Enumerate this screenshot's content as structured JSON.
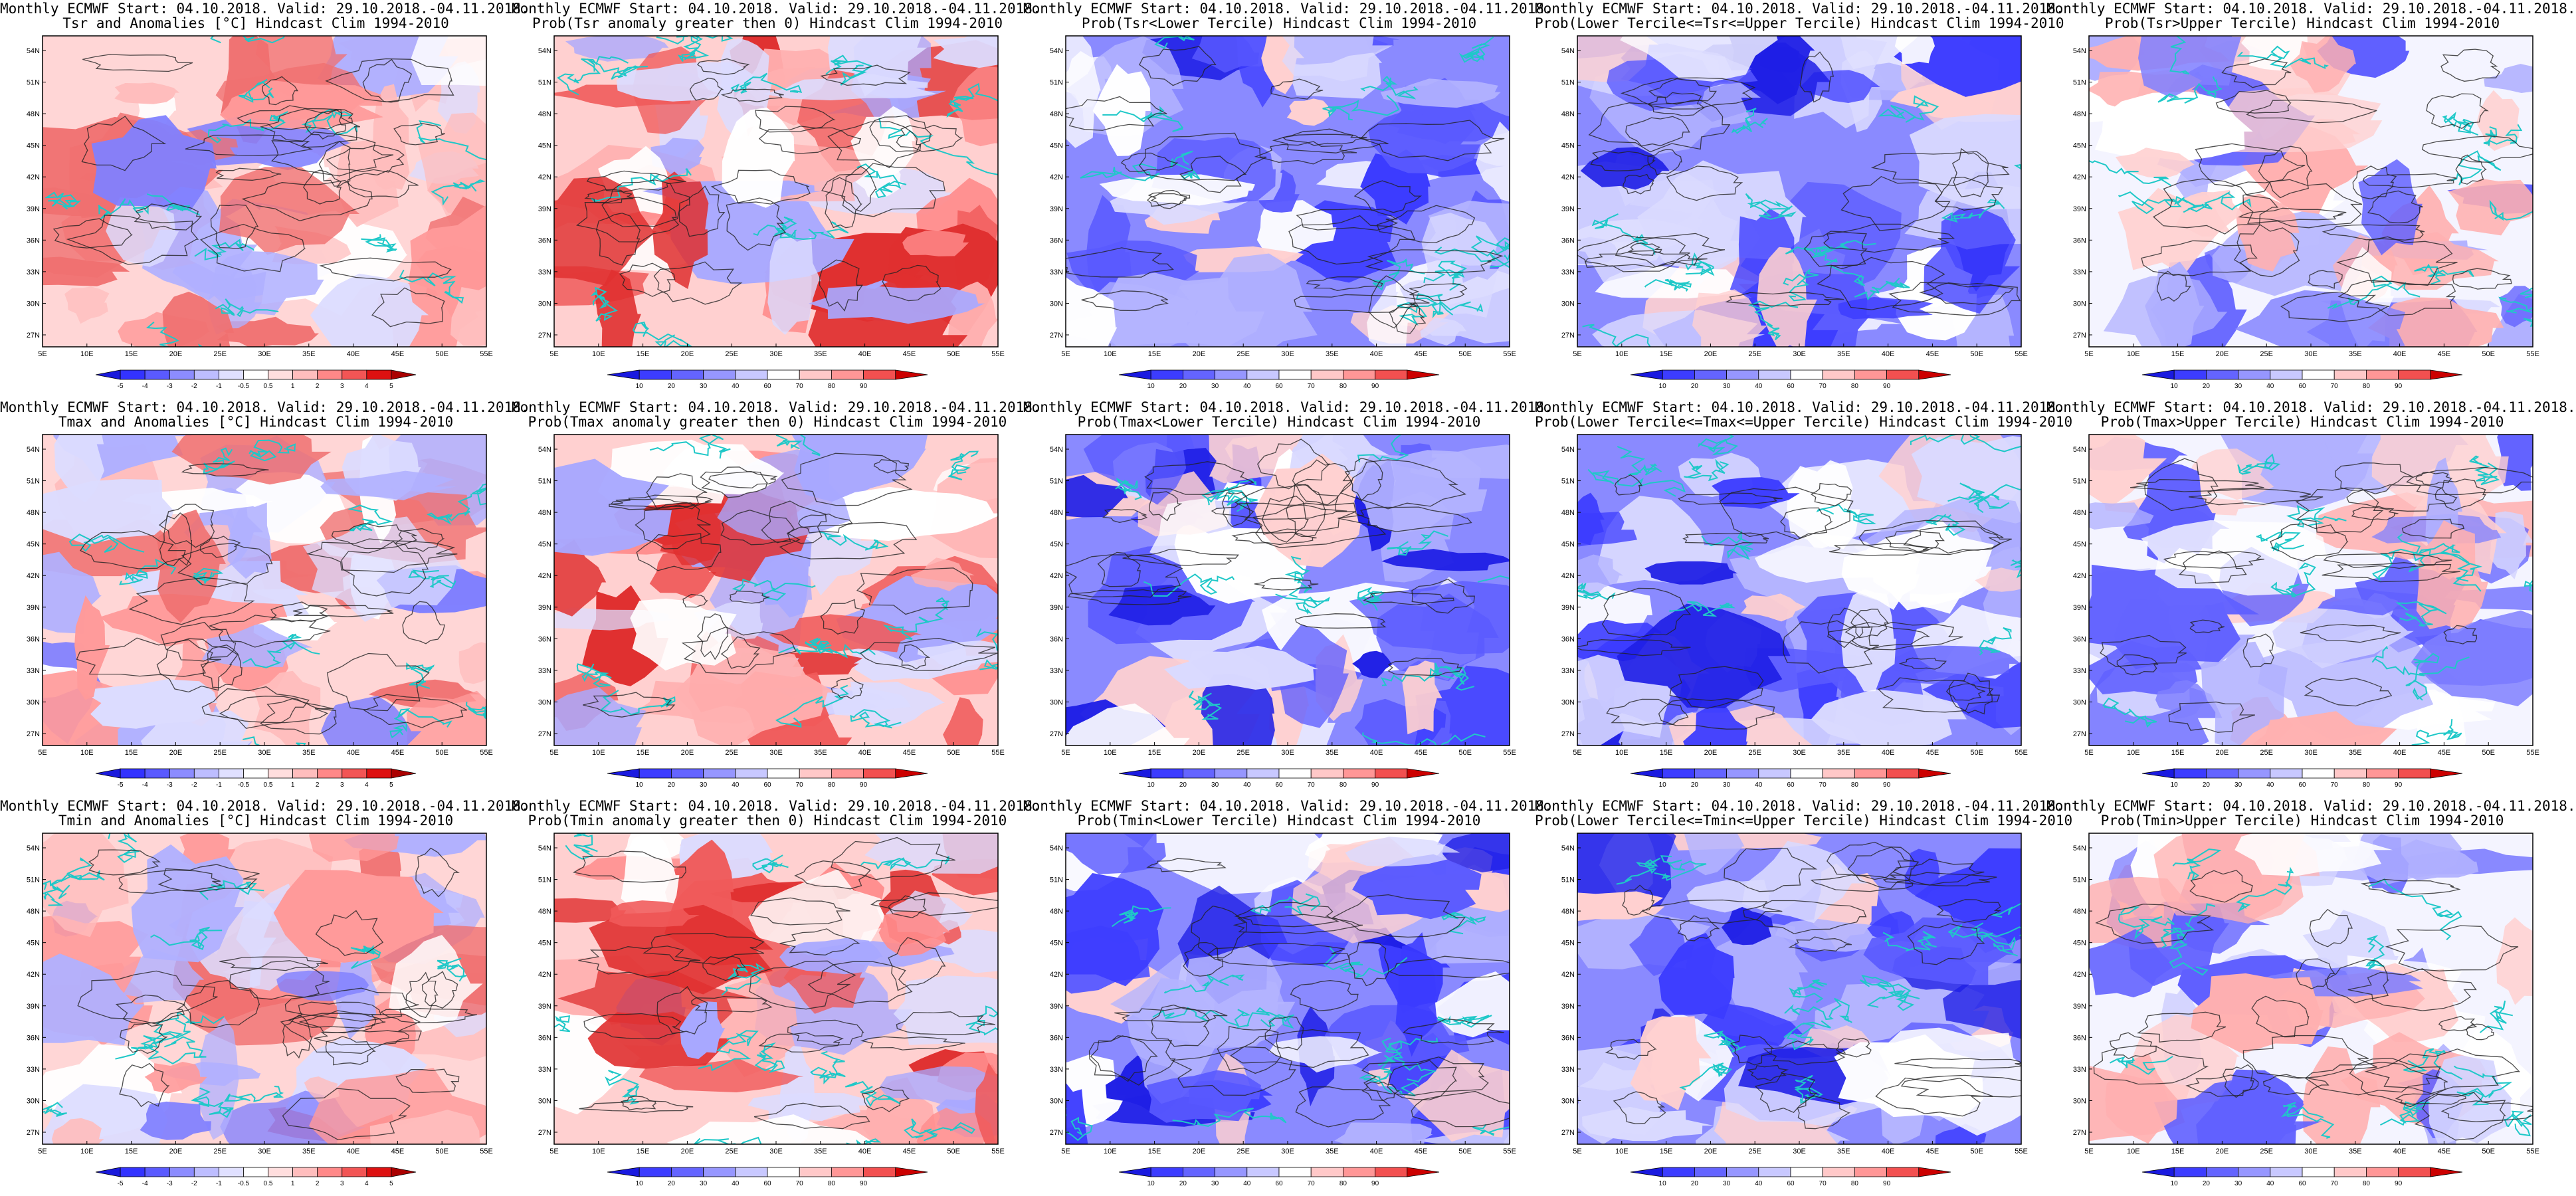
{
  "figure": {
    "panels": [
      {
        "title1": "Monthly ECMWF Start: 04.10.2018. Valid: 29.10.2018.-04.11.2018.",
        "title2": "Tsr and Anomalies [°C] Hindcast Clim 1994-2010",
        "kind": "anom",
        "legend": [
          "-5",
          "-4",
          "-3",
          "-2",
          "-1",
          "-0.5",
          "0.5",
          "1",
          "2",
          "3",
          "4",
          "5"
        ]
      },
      {
        "title1": "Monthly ECMWF Start: 04.10.2018. Valid: 29.10.2018.-04.11.2018.",
        "title2": "Prob(Tsr anomaly greater then 0) Hindcast Clim 1994-2010",
        "kind": "red",
        "legend": [
          "10",
          "20",
          "30",
          "40",
          "60",
          "70",
          "80",
          "90"
        ]
      },
      {
        "title1": "Monthly ECMWF Start: 04.10.2018. Valid: 29.10.2018.-04.11.2018.",
        "title2": "Prob(Tsr<Lower Tercile) Hindcast Clim 1994-2010",
        "kind": "blue",
        "legend": [
          "10",
          "20",
          "30",
          "40",
          "60",
          "70",
          "80",
          "90"
        ]
      },
      {
        "title1": "Monthly ECMWF Start: 04.10.2018. Valid: 29.10.2018.-04.11.2018.",
        "title2": "Prob(Lower Tercile<=Tsr<=Upper Tercile) Hindcast Clim 1994-2010",
        "kind": "blue",
        "legend": [
          "10",
          "20",
          "30",
          "40",
          "60",
          "70",
          "80",
          "90"
        ]
      },
      {
        "title1": "Monthly ECMWF Start: 04.10.2018. Valid: 29.10.2018.-04.11.2018.",
        "title2": "Prob(Tsr>Upper Tercile) Hindcast Clim 1994-2010",
        "kind": "mixed",
        "legend": [
          "10",
          "20",
          "30",
          "40",
          "60",
          "70",
          "80",
          "90"
        ]
      },
      {
        "title1": "Monthly ECMWF Start: 04.10.2018. Valid: 29.10.2018.-04.11.2018.",
        "title2": "Tmax and Anomalies [°C] Hindcast Clim 1994-2010",
        "kind": "anom",
        "legend": [
          "-5",
          "-4",
          "-3",
          "-2",
          "-1",
          "-0.5",
          "0.5",
          "1",
          "2",
          "3",
          "4",
          "5"
        ]
      },
      {
        "title1": "Monthly ECMWF Start: 04.10.2018. Valid: 29.10.2018.-04.11.2018.",
        "title2": "Prob(Tmax anomaly greater then 0) Hindcast Clim 1994-2010",
        "kind": "red",
        "legend": [
          "10",
          "20",
          "30",
          "40",
          "60",
          "70",
          "80",
          "90"
        ]
      },
      {
        "title1": "Monthly ECMWF Start: 04.10.2018. Valid: 29.10.2018.-04.11.2018.",
        "title2": "Prob(Tmax<Lower Tercile) Hindcast Clim 1994-2010",
        "kind": "blue",
        "legend": [
          "10",
          "20",
          "30",
          "40",
          "60",
          "70",
          "80",
          "90"
        ]
      },
      {
        "title1": "Monthly ECMWF Start: 04.10.2018. Valid: 29.10.2018.-04.11.2018.",
        "title2": "Prob(Lower Tercile<=Tmax<=Upper Tercile) Hindcast Clim 1994-2010",
        "kind": "blue",
        "legend": [
          "10",
          "20",
          "30",
          "40",
          "60",
          "70",
          "80",
          "90"
        ]
      },
      {
        "title1": "Monthly ECMWF Start: 04.10.2018. Valid: 29.10.2018.-04.11.2018.",
        "title2": "Prob(Tmax>Upper Tercile) Hindcast Clim 1994-2010",
        "kind": "mixed",
        "legend": [
          "10",
          "20",
          "30",
          "40",
          "60",
          "70",
          "80",
          "90"
        ]
      },
      {
        "title1": "Monthly ECMWF Start: 04.10.2018. Valid: 29.10.2018.-04.11.2018.",
        "title2": "Tmin and Anomalies [°C] Hindcast Clim 1994-2010",
        "kind": "anom",
        "legend": [
          "-5",
          "-4",
          "-3",
          "-2",
          "-1",
          "-0.5",
          "0.5",
          "1",
          "2",
          "3",
          "4",
          "5"
        ]
      },
      {
        "title1": "Monthly ECMWF Start: 04.10.2018. Valid: 29.10.2018.-04.11.2018.",
        "title2": "Prob(Tmin anomaly greater then 0) Hindcast Clim 1994-2010",
        "kind": "red",
        "legend": [
          "10",
          "20",
          "30",
          "40",
          "60",
          "70",
          "80",
          "90"
        ]
      },
      {
        "title1": "Monthly ECMWF Start: 04.10.2018. Valid: 29.10.2018.-04.11.2018.",
        "title2": "Prob(Tmin<Lower Tercile) Hindcast Clim 1994-2010",
        "kind": "blue",
        "legend": [
          "10",
          "20",
          "30",
          "40",
          "60",
          "70",
          "80",
          "90"
        ]
      },
      {
        "title1": "Monthly ECMWF Start: 04.10.2018. Valid: 29.10.2018.-04.11.2018.",
        "title2": "Prob(Lower Tercile<=Tmin<=Upper Tercile) Hindcast Clim 1994-2010",
        "kind": "blue",
        "legend": [
          "10",
          "20",
          "30",
          "40",
          "60",
          "70",
          "80",
          "90"
        ]
      },
      {
        "title1": "Monthly ECMWF Start: 04.10.2018. Valid: 29.10.2018.-04.11.2018.",
        "title2": "Prob(Tmin>Upper Tercile) Hindcast Clim 1994-2010",
        "kind": "mixed",
        "legend": [
          "10",
          "20",
          "30",
          "40",
          "60",
          "70",
          "80",
          "90"
        ]
      }
    ],
    "lat_labels": [
      "54N",
      "51N",
      "48N",
      "45N",
      "42N",
      "39N",
      "36N",
      "33N",
      "30N",
      "27N"
    ],
    "lon_labels": [
      "5E",
      "10E",
      "15E",
      "20E",
      "25E",
      "30E",
      "35E",
      "40E",
      "45E",
      "50E",
      "55E"
    ],
    "palettes": {
      "anom": [
        "#1a1adc",
        "#3333ff",
        "#5a5aff",
        "#8c8cff",
        "#bdbdff",
        "#e0e0ff",
        "#ffffff",
        "#ffdede",
        "#ffbdbd",
        "#ff8888",
        "#f25555",
        "#dd1111",
        "#aa0000"
      ],
      "prob_blue": [
        "#1a1ae0",
        "#3c3cff",
        "#6464ff",
        "#9696ff",
        "#c8c8ff",
        "#ffffff",
        "#ffc8c8",
        "#ff9696",
        "#f25050",
        "#cc0000"
      ],
      "prob_red": [
        "#1a1ae0",
        "#3c3cff",
        "#6464ff",
        "#9696ff",
        "#c8c8ff",
        "#ffffff",
        "#ffc8c8",
        "#ff9696",
        "#f25050",
        "#cc0000"
      ]
    }
  }
}
